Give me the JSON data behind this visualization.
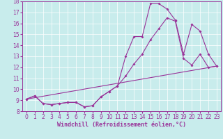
{
  "title": "",
  "xlabel": "Windchill (Refroidissement éolien,°C)",
  "ylabel": "",
  "background_color": "#c8ecec",
  "grid_color": "#b0d8d8",
  "line_color": "#993399",
  "xlim": [
    -0.5,
    23.5
  ],
  "ylim": [
    8,
    18
  ],
  "xticks": [
    0,
    1,
    2,
    3,
    4,
    5,
    6,
    7,
    8,
    9,
    10,
    11,
    12,
    13,
    14,
    15,
    16,
    17,
    18,
    19,
    20,
    21,
    22,
    23
  ],
  "yticks": [
    8,
    9,
    10,
    11,
    12,
    13,
    14,
    15,
    16,
    17,
    18
  ],
  "line1_x": [
    0,
    1,
    2,
    3,
    4,
    5,
    6,
    7,
    8,
    9,
    10,
    11,
    12,
    13,
    14,
    15,
    16,
    17,
    18,
    19,
    20,
    21,
    22,
    23
  ],
  "line1_y": [
    9.1,
    9.4,
    8.7,
    8.6,
    8.7,
    8.8,
    8.8,
    8.4,
    8.5,
    9.3,
    9.8,
    10.3,
    13.0,
    14.8,
    14.8,
    17.8,
    17.8,
    17.3,
    16.3,
    13.2,
    15.9,
    15.3,
    13.2,
    12.1
  ],
  "line2_x": [
    0,
    1,
    2,
    3,
    4,
    5,
    6,
    7,
    8,
    9,
    10,
    11,
    12,
    13,
    14,
    15,
    16,
    17,
    18,
    19,
    20,
    21,
    22,
    23
  ],
  "line2_y": [
    9.1,
    9.4,
    8.7,
    8.6,
    8.7,
    8.8,
    8.8,
    8.4,
    8.5,
    9.3,
    9.8,
    10.3,
    11.2,
    12.3,
    13.2,
    14.5,
    15.5,
    16.5,
    16.2,
    12.8,
    12.2,
    13.2,
    12.0,
    12.1
  ],
  "line3_x": [
    0,
    23
  ],
  "line3_y": [
    9.1,
    12.1
  ],
  "tick_fontsize": 5.5,
  "xlabel_fontsize": 6.0
}
